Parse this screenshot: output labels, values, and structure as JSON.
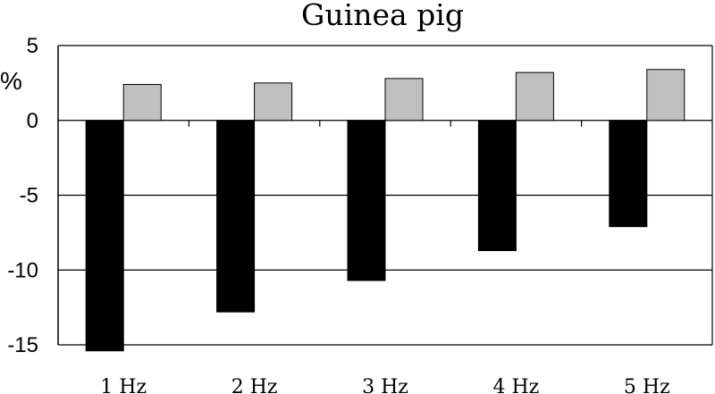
{
  "chart_data": {
    "type": "bar",
    "title": "Guinea pig",
    "ylabel": "%",
    "xlabel": "",
    "categories": [
      "1 Hz",
      "2 Hz",
      "3 Hz",
      "4 Hz",
      "5 Hz"
    ],
    "series": [
      {
        "values": [
          -15.4,
          -12.8,
          -10.7,
          -8.7,
          -7.1
        ],
        "color": "#000000"
      },
      {
        "values": [
          2.4,
          2.5,
          2.8,
          3.2,
          3.4
        ],
        "color": "#c0c0c0"
      }
    ],
    "ylim": [
      -15,
      5
    ],
    "yticks": [
      "5",
      "0",
      "-5",
      "-10",
      "-15"
    ],
    "grid": true
  }
}
